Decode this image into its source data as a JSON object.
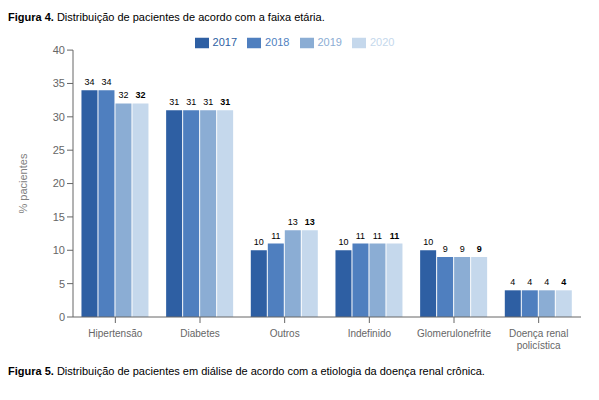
{
  "chart_data": {
    "type": "bar",
    "title": "Figura 4. Distribuição de pacientes de acordo com a faixa etária.",
    "annotations": [
      "Figura 5. Distribuição de pacientes em diálise de acordo com a etiologia da doença renal crônica."
    ],
    "categories": [
      "Hipertensão",
      "Diabetes",
      "Outros",
      "Indefinido",
      "Glomerulonefrite",
      "Doença renal\npolicística"
    ],
    "series": [
      {
        "name": "2017",
        "color": "#2E5FA3",
        "values": [
          34,
          31,
          10,
          10,
          10,
          4
        ]
      },
      {
        "name": "2018",
        "color": "#4F7FBF",
        "values": [
          34,
          31,
          11,
          11,
          9,
          4
        ]
      },
      {
        "name": "2019",
        "color": "#8BADD4",
        "values": [
          32,
          31,
          13,
          11,
          9,
          4
        ]
      },
      {
        "name": "2020",
        "color": "#C5D8EC",
        "values": [
          32,
          31,
          13,
          11,
          9,
          4
        ]
      }
    ],
    "ylabel": "% pacientes",
    "ylim": [
      0,
      40
    ],
    "yticks": [
      0,
      5,
      10,
      15,
      20,
      25,
      30,
      35,
      40
    ],
    "grid": false,
    "legend": "top",
    "data_labels": true
  }
}
